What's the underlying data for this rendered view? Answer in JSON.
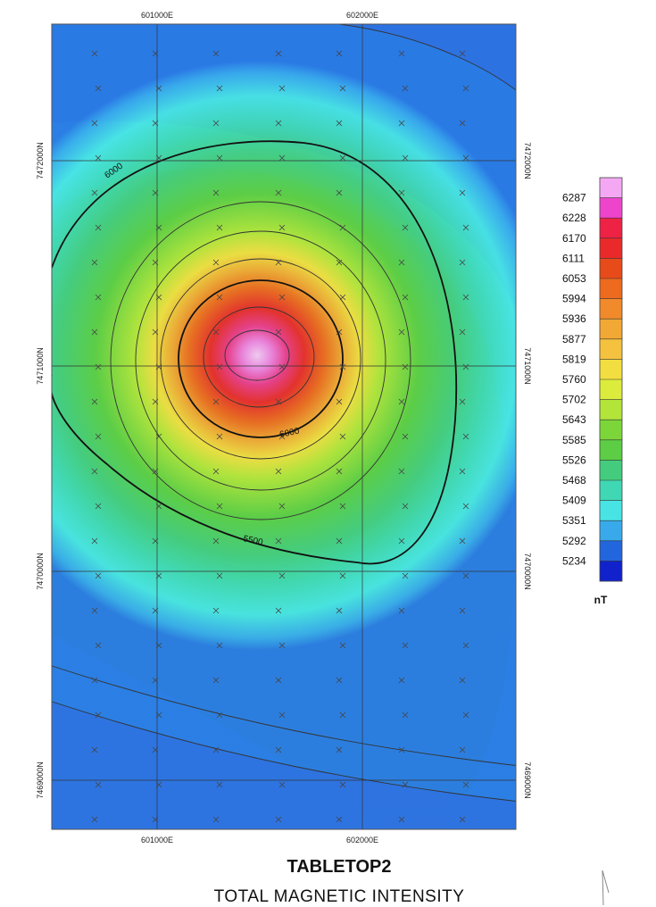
{
  "map": {
    "top_eastings": [
      "601000E",
      "602000E"
    ],
    "bottom_eastings": [
      "601000E",
      "602000E"
    ],
    "left_northings": [
      "7472000N",
      "7471000N",
      "7470000N",
      "7469000N"
    ],
    "right_northings": [
      "7472000N",
      "7471000N",
      "7470000N",
      "7469000N"
    ],
    "contour_labels": [
      "6000",
      "6000",
      "5500"
    ]
  },
  "legend": {
    "values": [
      "6287",
      "6228",
      "6170",
      "6111",
      "6053",
      "5994",
      "5936",
      "5877",
      "5819",
      "5760",
      "5702",
      "5643",
      "5585",
      "5526",
      "5468",
      "5409",
      "5351",
      "5292",
      "5234"
    ],
    "colors": [
      "#f4a8f4",
      "#ee44cc",
      "#ee2244",
      "#ea2a2a",
      "#e84b1a",
      "#ee6a1e",
      "#f08a2a",
      "#f2a834",
      "#f4c23e",
      "#f2de40",
      "#dcec3c",
      "#b2e43a",
      "#7cd63a",
      "#5ccd44",
      "#44cc7e",
      "#40d8b4",
      "#48e4e4",
      "#38aaec",
      "#2266dd",
      "#1122cc"
    ],
    "unit": "nT"
  },
  "title": {
    "main": "TABLETOP2",
    "subtitle": "TOTAL MAGNETIC INTENSITY"
  }
}
